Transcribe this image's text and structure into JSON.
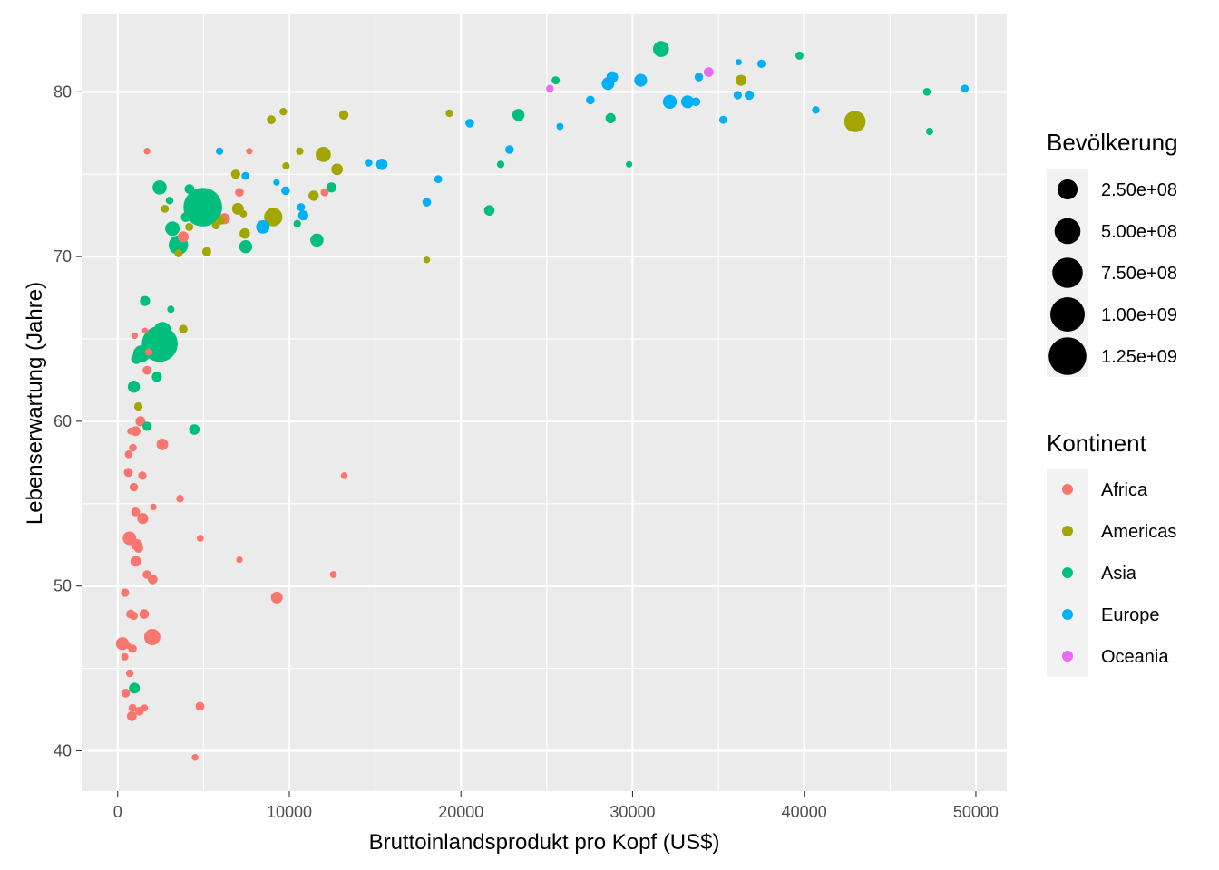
{
  "chart_data": {
    "type": "scatter",
    "title": "",
    "xlabel": "Bruttoinlandsprodukt pro Kopf (US$)",
    "ylabel": "Lebenserwartung (Jahre)",
    "xlim": [
      -2100,
      51800
    ],
    "ylim": [
      37.55,
      84.75
    ],
    "x_ticks": [
      0,
      10000,
      20000,
      30000,
      40000,
      50000
    ],
    "x_tick_labels": [
      "0",
      "10000",
      "20000",
      "30000",
      "40000",
      "50000"
    ],
    "y_ticks": [
      40,
      50,
      60,
      70,
      80
    ],
    "y_tick_labels": [
      "40",
      "50",
      "60",
      "70",
      "80"
    ],
    "grid": true,
    "size_legend": {
      "title": "Bevölkerung",
      "breaks": [
        250000000,
        500000000,
        750000000,
        1000000000,
        1250000000
      ],
      "labels": [
        "2.50e+08",
        "5.00e+08",
        "7.50e+08",
        "1.00e+09",
        "1.25e+09"
      ]
    },
    "color_legend": {
      "title": "Kontinent",
      "entries": [
        {
          "name": "Africa",
          "color": "#F8766D"
        },
        {
          "name": "Americas",
          "color": "#A3A500"
        },
        {
          "name": "Asia",
          "color": "#00BF7D"
        },
        {
          "name": "Europe",
          "color": "#00B0F6"
        },
        {
          "name": "Oceania",
          "color": "#E76BF3"
        }
      ]
    },
    "series": [
      {
        "name": "Africa",
        "points": [
          [
            6223,
            72.3,
            33
          ],
          [
            4797,
            42.7,
            12
          ],
          [
            1441,
            56.7,
            8
          ],
          [
            12570,
            50.7,
            2
          ],
          [
            1217,
            52.3,
            14
          ],
          [
            430,
            49.6,
            8
          ],
          [
            2042,
            50.4,
            18
          ],
          [
            706,
            44.7,
            4
          ],
          [
            1704,
            50.7,
            10
          ],
          [
            986,
            65.2,
            1
          ],
          [
            278,
            46.5,
            65
          ],
          [
            3633,
            55.3,
            4
          ],
          [
            1545,
            48.3,
            18
          ],
          [
            2082,
            54.8,
            0.5
          ],
          [
            7093,
            51.6,
            0.6
          ],
          [
            641,
            58.0,
            5
          ],
          [
            691,
            52.9,
            76
          ],
          [
            13206,
            56.7,
            1.5
          ],
          [
            752,
            59.4,
            1.7
          ],
          [
            1328,
            60.0,
            23
          ],
          [
            942,
            56.0,
            9
          ],
          [
            580,
            46.4,
            1.5
          ],
          [
            1463,
            54.1,
            35
          ],
          [
            1569,
            42.6,
            2
          ],
          [
            415,
            45.7,
            3
          ],
          [
            12057,
            73.9,
            6
          ],
          [
            1045,
            59.4,
            19
          ],
          [
            759,
            48.3,
            13
          ],
          [
            1042,
            54.5,
            12
          ],
          [
            1803,
            64.2,
            3
          ],
          [
            1712,
            76.4,
            1.2
          ],
          [
            3820,
            71.2,
            33
          ],
          [
            824,
            42.1,
            20
          ],
          [
            4811,
            52.9,
            2
          ],
          [
            620,
            56.9,
            13
          ],
          [
            2014,
            46.9,
            135
          ],
          [
            7670,
            76.4,
            0.8
          ],
          [
            863,
            46.2,
            9
          ],
          [
            1598,
            65.5,
            0.2
          ],
          [
            1712,
            63.1,
            12
          ],
          [
            862,
            42.6,
            6
          ],
          [
            926,
            48.2,
            9
          ],
          [
            9270,
            49.3,
            44
          ],
          [
            2602,
            58.6,
            42
          ],
          [
            4513,
            39.6,
            1.1
          ],
          [
            1107,
            52.5,
            38
          ],
          [
            883,
            58.4,
            5
          ],
          [
            7093,
            73.9,
            10
          ],
          [
            1056,
            51.5,
            30
          ],
          [
            1271,
            42.4,
            12
          ],
          [
            470,
            43.5,
            12
          ]
        ]
      },
      {
        "name": "Americas",
        "points": [
          [
            12779,
            75.3,
            40
          ],
          [
            3822,
            65.6,
            9
          ],
          [
            9066,
            72.4,
            190
          ],
          [
            36319,
            80.7,
            33
          ],
          [
            13172,
            78.6,
            16
          ],
          [
            7007,
            72.9,
            44
          ],
          [
            9645,
            78.8,
            4
          ],
          [
            8948,
            78.3,
            11
          ],
          [
            6025,
            72.2,
            9
          ],
          [
            6873,
            75.0,
            14
          ],
          [
            5728,
            71.9,
            7
          ],
          [
            5186,
            70.3,
            13
          ],
          [
            1202,
            60.9,
            8
          ],
          [
            3548,
            70.2,
            7
          ],
          [
            7321,
            72.6,
            2.8
          ],
          [
            11977,
            76.2,
            108
          ],
          [
            2749,
            72.9,
            5.7
          ],
          [
            9809,
            75.5,
            3.2
          ],
          [
            4173,
            71.8,
            6.7
          ],
          [
            7409,
            71.4,
            28
          ],
          [
            19329,
            78.7,
            3.9
          ],
          [
            18009,
            69.8,
            1.1
          ],
          [
            42952,
            78.2,
            301
          ],
          [
            10611,
            76.4,
            3.4
          ],
          [
            11416,
            73.7,
            26
          ]
        ]
      },
      {
        "name": "Asia",
        "points": [
          [
            975,
            43.8,
            32
          ],
          [
            29796,
            75.6,
            0.7
          ],
          [
            1391,
            64.1,
            150
          ],
          [
            1714,
            59.7,
            14
          ],
          [
            4959,
            73.0,
            1319
          ],
          [
            39725,
            82.2,
            6.9
          ],
          [
            2452,
            64.7,
            1110
          ],
          [
            3541,
            70.7,
            224
          ],
          [
            11606,
            71.0,
            69
          ],
          [
            4471,
            59.5,
            27
          ],
          [
            25523,
            80.7,
            6.4
          ],
          [
            31656,
            82.6,
            127
          ],
          [
            4519,
            72.5,
            6
          ],
          [
            1593,
            67.3,
            23
          ],
          [
            23348,
            78.6,
            49
          ],
          [
            47307,
            77.6,
            2.5
          ],
          [
            10461,
            72.0,
            3.9
          ],
          [
            12452,
            74.2,
            24
          ],
          [
            3096,
            66.8,
            2.9
          ],
          [
            944,
            62.1,
            48
          ],
          [
            1091,
            63.8,
            29
          ],
          [
            22316,
            75.6,
            3.2
          ],
          [
            2606,
            65.5,
            170
          ],
          [
            3190,
            71.7,
            91
          ],
          [
            21655,
            72.8,
            27
          ],
          [
            47143,
            80.0,
            4.6
          ],
          [
            3970,
            72.4,
            20
          ],
          [
            4185,
            74.1,
            19
          ],
          [
            28718,
            78.4,
            23
          ],
          [
            7458,
            70.6,
            65
          ],
          [
            2442,
            74.2,
            85
          ],
          [
            3026,
            73.4,
            4
          ],
          [
            2281,
            62.7,
            22
          ]
        ]
      },
      {
        "name": "Europe",
        "points": [
          [
            5937,
            76.4,
            3.6
          ],
          [
            36126,
            79.8,
            8.2
          ],
          [
            33693,
            79.4,
            10.4
          ],
          [
            7446,
            74.9,
            4.6
          ],
          [
            10681,
            73.0,
            7.3
          ],
          [
            14619,
            75.7,
            4.5
          ],
          [
            22834,
            76.5,
            10.2
          ],
          [
            35278,
            78.3,
            5.5
          ],
          [
            33207,
            79.3,
            5.2
          ],
          [
            30470,
            80.7,
            61
          ],
          [
            32170,
            79.4,
            82
          ],
          [
            27538,
            79.5,
            10.7
          ],
          [
            18009,
            73.3,
            10
          ],
          [
            36181,
            81.8,
            0.3
          ],
          [
            40676,
            78.9,
            4.1
          ],
          [
            28570,
            80.5,
            58
          ],
          [
            9254,
            74.5,
            0.7
          ],
          [
            36798,
            79.8,
            16.6
          ],
          [
            49357,
            80.2,
            4.6
          ],
          [
            15390,
            75.6,
            38.5
          ],
          [
            20510,
            78.1,
            10.6
          ],
          [
            10808,
            72.5,
            22.3
          ],
          [
            9787,
            74.0,
            10.2
          ],
          [
            18678,
            74.7,
            5.4
          ],
          [
            25768,
            77.9,
            2
          ],
          [
            28821,
            80.9,
            40.4
          ],
          [
            33860,
            80.9,
            9
          ],
          [
            37506,
            81.7,
            7.6
          ],
          [
            8458,
            71.8,
            71
          ],
          [
            33203,
            79.4,
            60.8
          ]
        ]
      },
      {
        "name": "Oceania",
        "points": [
          [
            34435,
            81.2,
            20.4
          ],
          [
            25185,
            80.2,
            4.1
          ]
        ]
      }
    ]
  }
}
